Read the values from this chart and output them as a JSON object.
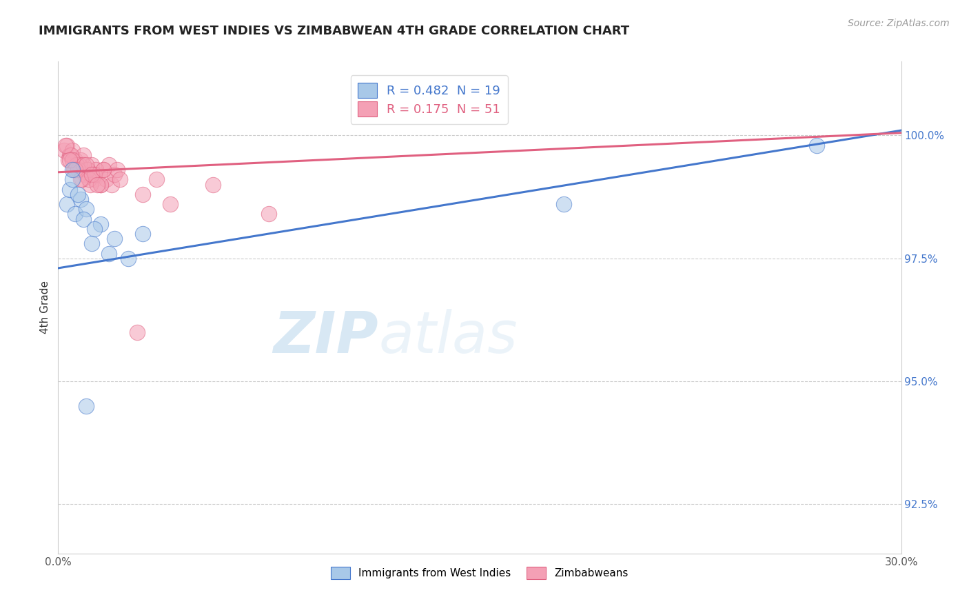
{
  "title": "IMMIGRANTS FROM WEST INDIES VS ZIMBABWEAN 4TH GRADE CORRELATION CHART",
  "source_text": "Source: ZipAtlas.com",
  "ylabel": "4th Grade",
  "xlim": [
    0.0,
    30.0
  ],
  "ylim": [
    91.5,
    101.5
  ],
  "yticks": [
    92.5,
    95.0,
    97.5,
    100.0
  ],
  "xticks": [
    0.0,
    5.0,
    10.0,
    15.0,
    20.0,
    25.0,
    30.0
  ],
  "xtick_labels": [
    "0.0%",
    "",
    "",
    "",
    "",
    "",
    "30.0%"
  ],
  "ytick_labels": [
    "92.5%",
    "95.0%",
    "97.5%",
    "100.0%"
  ],
  "legend_R_blue": "0.482",
  "legend_N_blue": "19",
  "legend_R_pink": "0.175",
  "legend_N_pink": "51",
  "legend_label_blue": "Immigrants from West Indies",
  "legend_label_pink": "Zimbabweans",
  "blue_color": "#A8C8E8",
  "pink_color": "#F4A0B5",
  "blue_line_color": "#4477CC",
  "pink_line_color": "#E06080",
  "watermark_zip": "ZIP",
  "watermark_atlas": "atlas",
  "blue_line_x0": 0.0,
  "blue_line_y0": 97.3,
  "blue_line_x1": 30.0,
  "blue_line_y1": 100.1,
  "pink_line_x0": 0.0,
  "pink_line_y0": 99.25,
  "pink_line_x1": 30.0,
  "pink_line_y1": 100.05,
  "blue_scatter_x": [
    0.3,
    0.4,
    0.5,
    0.6,
    0.8,
    1.0,
    1.2,
    1.5,
    1.8,
    2.0,
    2.5,
    3.0,
    0.7,
    0.9,
    1.3,
    1.0,
    0.5,
    18.0,
    27.0
  ],
  "blue_scatter_y": [
    98.6,
    98.9,
    99.1,
    98.4,
    98.7,
    98.5,
    97.8,
    98.2,
    97.6,
    97.9,
    97.5,
    98.0,
    98.8,
    98.3,
    98.1,
    94.5,
    99.3,
    98.6,
    99.8
  ],
  "pink_scatter_x": [
    0.2,
    0.3,
    0.4,
    0.5,
    0.6,
    0.7,
    0.8,
    0.9,
    1.0,
    1.1,
    1.2,
    1.3,
    1.4,
    1.5,
    1.6,
    1.7,
    1.8,
    1.9,
    2.0,
    2.1,
    2.2,
    0.35,
    0.55,
    0.75,
    0.95,
    1.15,
    1.35,
    0.45,
    0.65,
    0.85,
    1.05,
    0.25,
    0.5,
    0.7,
    0.9,
    1.1,
    1.3,
    1.5,
    3.0,
    3.5,
    4.0,
    5.5,
    7.5,
    2.8,
    0.4,
    0.6,
    0.8,
    1.0,
    1.2,
    1.4,
    1.6
  ],
  "pink_scatter_y": [
    99.7,
    99.8,
    99.6,
    99.7,
    99.5,
    99.4,
    99.5,
    99.6,
    99.3,
    99.2,
    99.4,
    99.1,
    99.2,
    99.0,
    99.3,
    99.1,
    99.4,
    99.0,
    99.2,
    99.3,
    99.1,
    99.5,
    99.3,
    99.4,
    99.2,
    99.0,
    99.3,
    99.6,
    99.4,
    99.1,
    99.3,
    99.8,
    99.5,
    99.3,
    99.4,
    99.1,
    99.2,
    99.0,
    98.8,
    99.1,
    98.6,
    99.0,
    98.4,
    96.0,
    99.5,
    99.3,
    99.1,
    99.4,
    99.2,
    99.0,
    99.3
  ]
}
